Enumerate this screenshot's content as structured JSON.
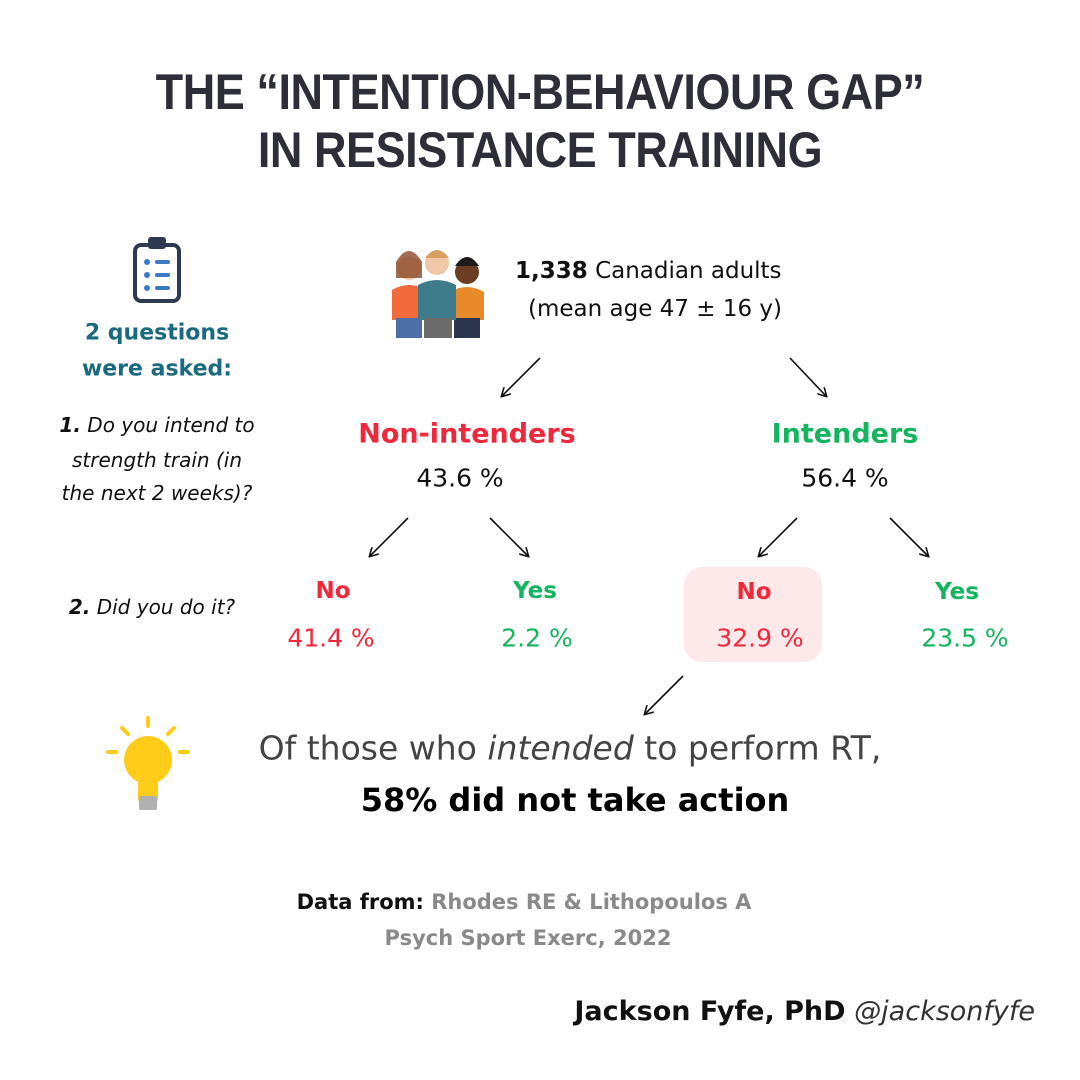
{
  "title": [
    "THE “INTENTION-BEHAVIOUR GAP”",
    "IN RESISTANCE TRAINING"
  ],
  "sample": {
    "count": "1,338",
    "label": "Canadian adults",
    "detail": "(mean age 47 ± 16 y)"
  },
  "questions": {
    "heading": [
      "2 questions",
      "were asked:"
    ],
    "items": [
      {
        "number": "1.",
        "lines": [
          "Do you intend to",
          "strength train (in",
          "the next 2 weeks)?"
        ]
      },
      {
        "number": "2.",
        "lines": [
          "Did you do it?"
        ]
      }
    ]
  },
  "groups": [
    {
      "label": "Non-intenders",
      "percent": "43.6 %",
      "outcomes": [
        {
          "label": "No",
          "percent": "41.4 %"
        },
        {
          "label": "Yes",
          "percent": "2.2 %"
        }
      ]
    },
    {
      "label": "Intenders",
      "percent": "56.4 %",
      "outcomes": [
        {
          "label": "No",
          "percent": "32.9 %"
        },
        {
          "label": "Yes",
          "percent": "23.5 %"
        }
      ]
    }
  ],
  "conclusion": {
    "line1": [
      "Of those who",
      "intended",
      "to perform RT,"
    ],
    "line2": "58% did not take action"
  },
  "source": {
    "label": "Data from:",
    "lines": [
      "Rhodes RE & Lithopoulos A",
      "Psych Sport Exerc, 2022"
    ]
  },
  "author": {
    "name": "Jackson Fyfe, PhD",
    "handle": "@jacksonfyfe"
  }
}
